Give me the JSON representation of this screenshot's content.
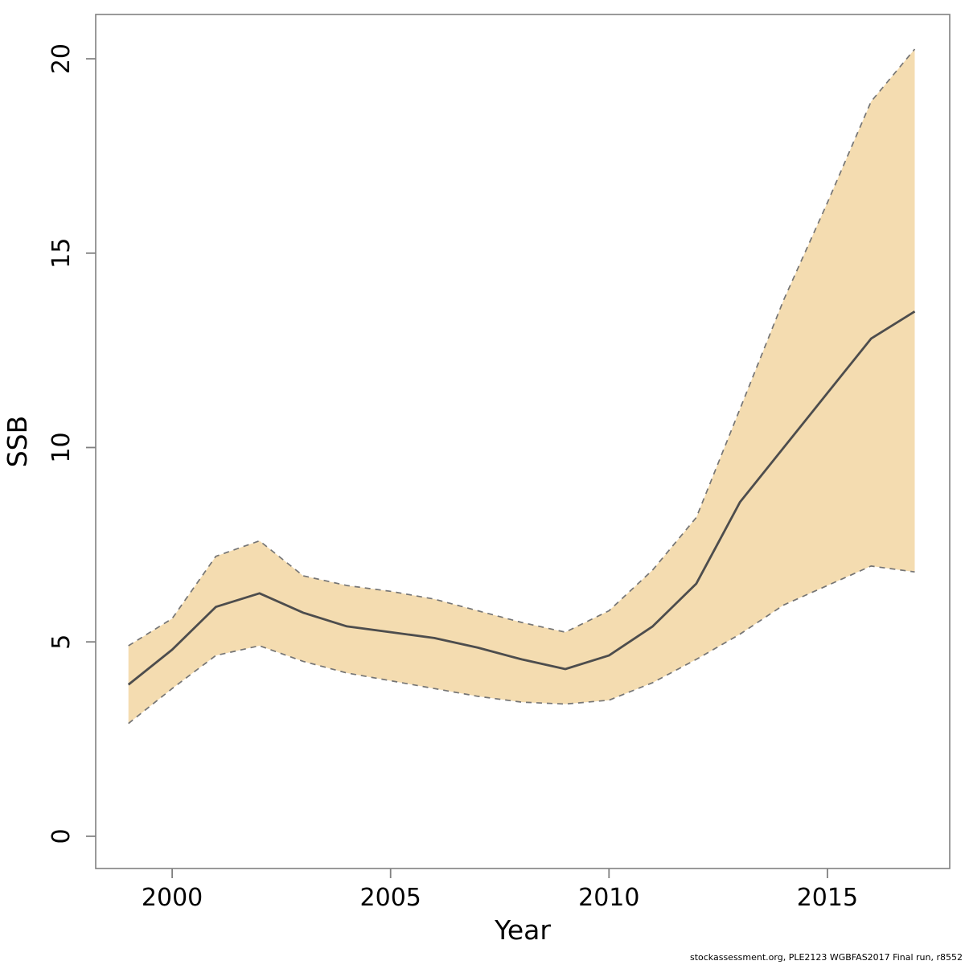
{
  "page": {
    "background": "#ffffff"
  },
  "footer": {
    "text": "stockassessment.org, PLE2123 WGBFAS2017 Final run, r8552"
  },
  "chart_data": {
    "type": "line",
    "title": "",
    "xlabel": "Year",
    "ylabel": "SSB",
    "x": [
      1999,
      2000,
      2001,
      2002,
      2003,
      2004,
      2005,
      2006,
      2007,
      2008,
      2009,
      2010,
      2011,
      2012,
      2013,
      2014,
      2015,
      2016,
      2017
    ],
    "series": [
      {
        "name": "SSB estimate",
        "role": "center",
        "style": "solid",
        "values": [
          3.9,
          4.8,
          5.9,
          6.25,
          5.75,
          5.4,
          5.25,
          5.1,
          4.85,
          4.55,
          4.3,
          4.65,
          5.4,
          6.5,
          8.6,
          10.0,
          11.4,
          12.8,
          13.5
        ]
      },
      {
        "name": "Confidence interval upper",
        "role": "band-upper",
        "style": "dashed",
        "values": [
          4.9,
          5.6,
          7.2,
          7.6,
          6.7,
          6.45,
          6.3,
          6.1,
          5.8,
          5.5,
          5.25,
          5.8,
          6.85,
          8.2,
          11.0,
          13.8,
          16.3,
          18.9,
          20.25
        ]
      },
      {
        "name": "Confidence interval lower",
        "role": "band-lower",
        "style": "dashed",
        "values": [
          2.9,
          3.8,
          4.65,
          4.9,
          4.5,
          4.2,
          4.0,
          3.8,
          3.6,
          3.45,
          3.4,
          3.5,
          3.95,
          4.55,
          5.2,
          5.95,
          6.45,
          6.95,
          6.8
        ]
      }
    ],
    "x_ticks": [
      2000,
      2005,
      2010,
      2015
    ],
    "y_ticks": [
      0,
      5,
      10,
      15,
      20
    ],
    "xlim": [
      1998.25,
      2017.8
    ],
    "ylim": [
      -0.83,
      21.14
    ],
    "grid": false,
    "legend": "none",
    "band_filled": true,
    "colors": {
      "band_fill": "#F4DCB0",
      "band_border": "#757575",
      "line": "#4d4d4d",
      "axis": "#808080",
      "text": "#000000"
    }
  }
}
